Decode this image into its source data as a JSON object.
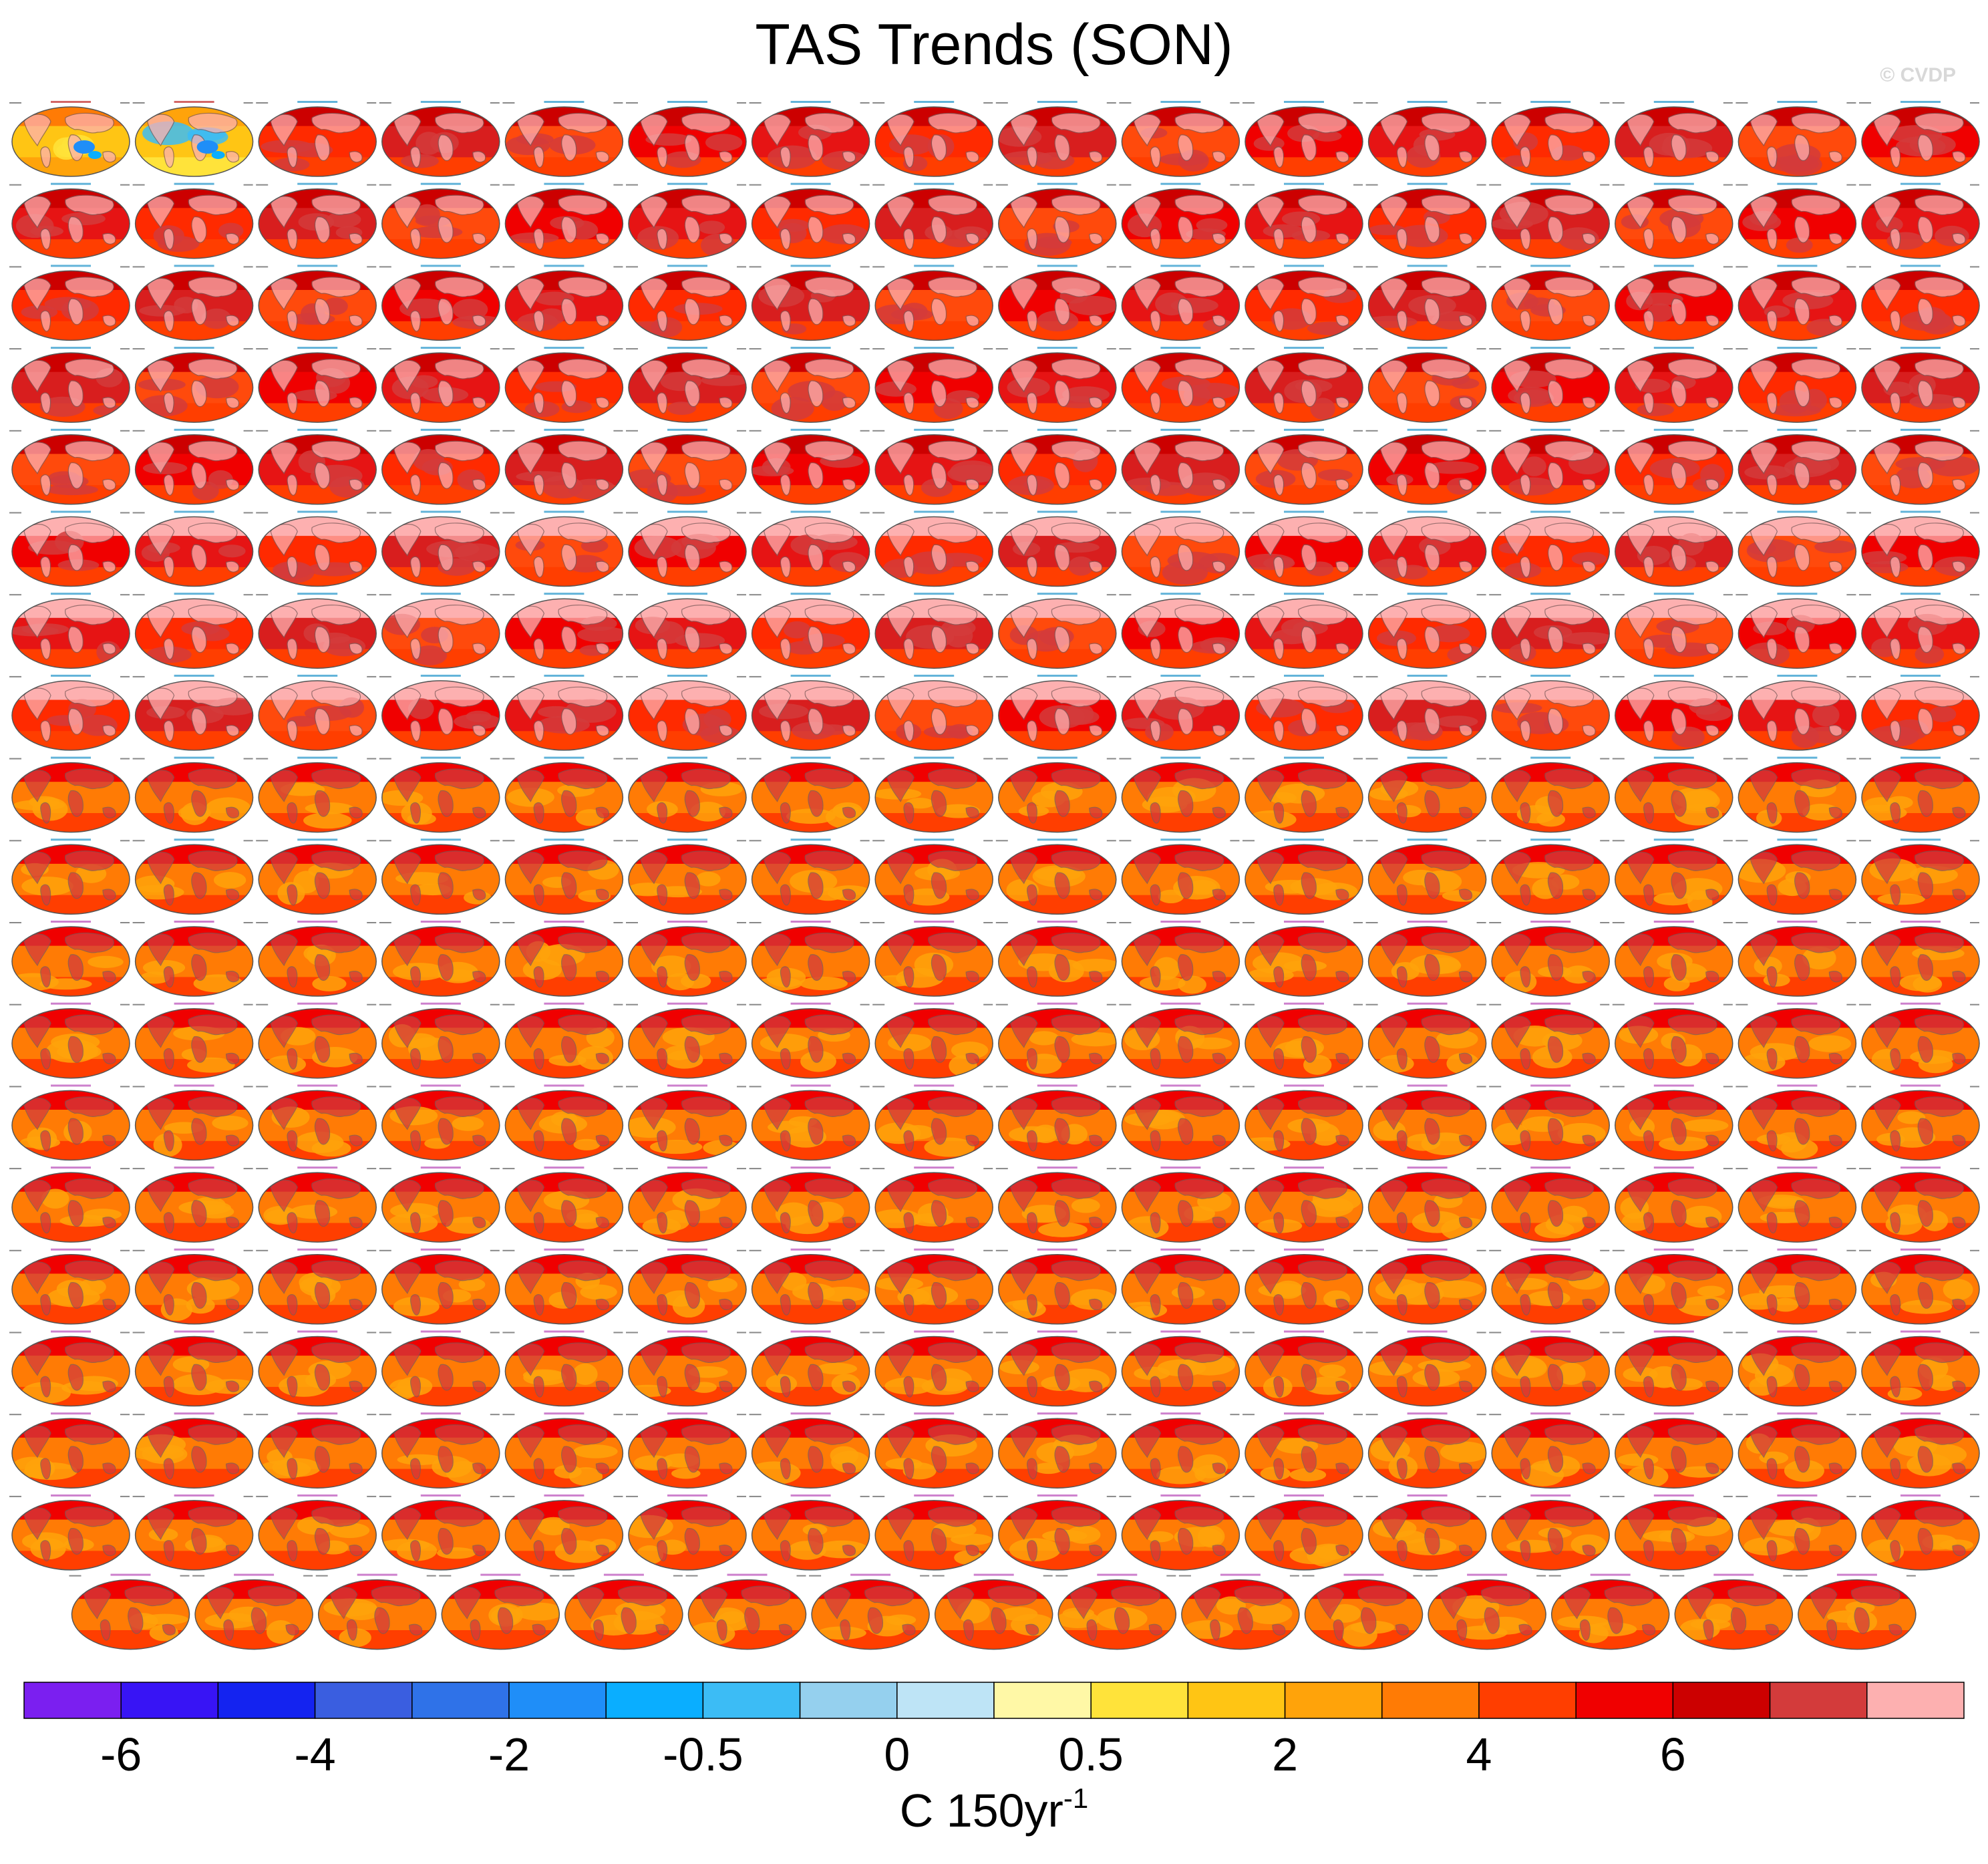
{
  "title": "TAS Trends (SON)",
  "credit": "© CVDP",
  "chart_data": {
    "type": "heatmap",
    "layout": "panel-grid",
    "title": "TAS Trends (SON)",
    "panel_rows": 19,
    "panel_columns": 16,
    "observations": [
      {
        "name": "BEST",
        "period": "1850-2022"
      },
      {
        "name": "GISTEMP",
        "period": "1880-2022"
      }
    ],
    "model_periods": "1850-2099",
    "colorbar": {
      "label": "C 150yr",
      "label_superscript": "-1",
      "tick_labels": [
        "-6",
        "-4",
        "-2",
        "-0.5",
        "0",
        "0.5",
        "2",
        "4",
        "6"
      ],
      "tick_after_bin": [
        1,
        3,
        5,
        7,
        9,
        11,
        13,
        15,
        17
      ],
      "bin_colors": [
        "#7b1ff0",
        "#3814f5",
        "#1423f0",
        "#3a5ee0",
        "#2f72e8",
        "#1f8ef8",
        "#0aaeff",
        "#3cbcf5",
        "#95d0ee",
        "#bee4f6",
        "#fff8a6",
        "#ffe33a",
        "#ffc514",
        "#ffa30a",
        "#ff7b05",
        "#ff3e00",
        "#f00000",
        "#cc0000",
        "#d33b3b",
        "#fdb0b0"
      ]
    }
  }
}
